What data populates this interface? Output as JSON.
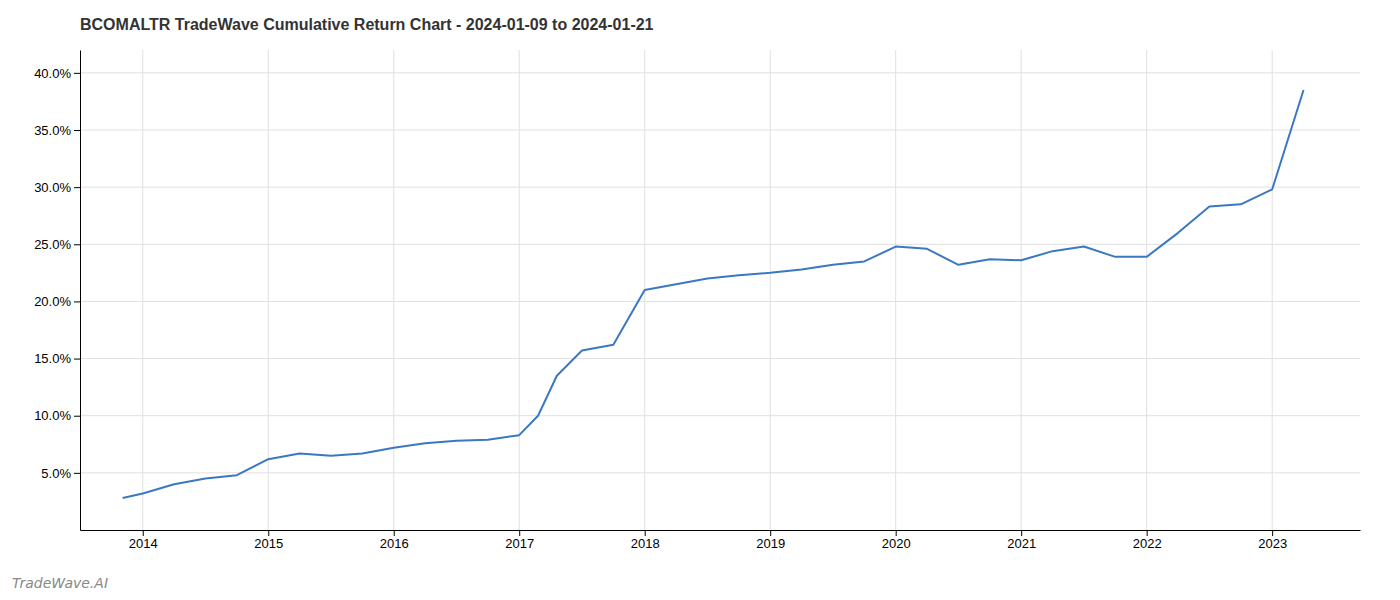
{
  "chart_data": {
    "type": "line",
    "title": "BCOMALTR TradeWave Cumulative Return Chart - 2024-01-09 to 2024-01-21",
    "annotations": [
      "TradeWave.AI"
    ],
    "x": [
      2013.84,
      2014.0,
      2014.25,
      2014.5,
      2014.75,
      2015.0,
      2015.25,
      2015.5,
      2015.75,
      2016.0,
      2016.25,
      2016.5,
      2016.75,
      2017.0,
      2017.15,
      2017.3,
      2017.5,
      2017.75,
      2018.0,
      2018.25,
      2018.5,
      2018.75,
      2019.0,
      2019.25,
      2019.5,
      2019.75,
      2020.0,
      2020.25,
      2020.5,
      2020.75,
      2021.0,
      2021.25,
      2021.5,
      2021.75,
      2022.0,
      2022.25,
      2022.5,
      2022.75,
      2023.0,
      2023.25
    ],
    "values": [
      2.8,
      3.2,
      4.0,
      4.5,
      4.8,
      6.2,
      6.7,
      6.5,
      6.7,
      7.2,
      7.6,
      7.8,
      7.9,
      8.3,
      10.0,
      13.5,
      15.7,
      16.2,
      21.0,
      21.5,
      22.0,
      22.3,
      22.5,
      22.8,
      23.2,
      23.5,
      24.8,
      24.6,
      23.2,
      23.7,
      23.6,
      24.4,
      24.8,
      23.9,
      23.9,
      26.0,
      28.3,
      28.5,
      29.8,
      38.5
    ],
    "color": "#3b78c4",
    "xlim": [
      2013.5,
      2023.7
    ],
    "xticks": [
      2014,
      2015,
      2016,
      2017,
      2018,
      2019,
      2020,
      2021,
      2022,
      2023
    ],
    "ylim": [
      0.0,
      42.0
    ],
    "yticks": [
      {
        "value": 5.0,
        "label": "5.0%"
      },
      {
        "value": 10.0,
        "label": "10.0%"
      },
      {
        "value": 15.0,
        "label": "15.0%"
      },
      {
        "value": 20.0,
        "label": "20.0%"
      },
      {
        "value": 25.0,
        "label": "25.0%"
      },
      {
        "value": 30.0,
        "label": "30.0%"
      },
      {
        "value": 35.0,
        "label": "35.0%"
      },
      {
        "value": 40.0,
        "label": "40.0%"
      }
    ],
    "grid": true
  }
}
